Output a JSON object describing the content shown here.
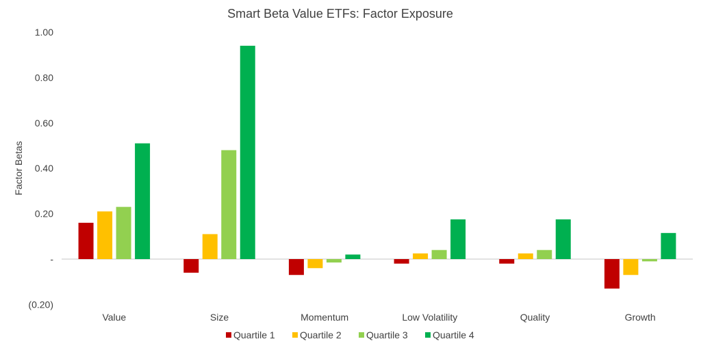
{
  "chart_data": {
    "type": "bar",
    "title": "Smart Beta Value ETFs: Factor Exposure",
    "xlabel": "",
    "ylabel": "Factor Betas",
    "ylim": [
      -0.2,
      1.0
    ],
    "yticks": [
      "(0.20)",
      "-",
      "0.20",
      "0.40",
      "0.60",
      "0.80",
      "1.00"
    ],
    "ytick_values": [
      -0.2,
      0,
      0.2,
      0.4,
      0.6,
      0.8,
      1.0
    ],
    "grid": false,
    "legend_position": "bottom",
    "categories": [
      "Value",
      "Size",
      "Momentum",
      "Low Volatility",
      "Quality",
      "Growth"
    ],
    "series": [
      {
        "name": "Quartile 1",
        "color": "#C00000",
        "values": [
          0.16,
          -0.06,
          -0.07,
          -0.02,
          -0.02,
          -0.13
        ]
      },
      {
        "name": "Quartile 2",
        "color": "#FFC000",
        "values": [
          0.21,
          0.11,
          -0.04,
          0.025,
          0.025,
          -0.07
        ]
      },
      {
        "name": "Quartile 3",
        "color": "#92D050",
        "values": [
          0.23,
          0.48,
          -0.015,
          0.04,
          0.04,
          -0.01
        ]
      },
      {
        "name": "Quartile 4",
        "color": "#00B050",
        "values": [
          0.51,
          0.94,
          0.02,
          0.175,
          0.175,
          0.115
        ]
      }
    ]
  }
}
